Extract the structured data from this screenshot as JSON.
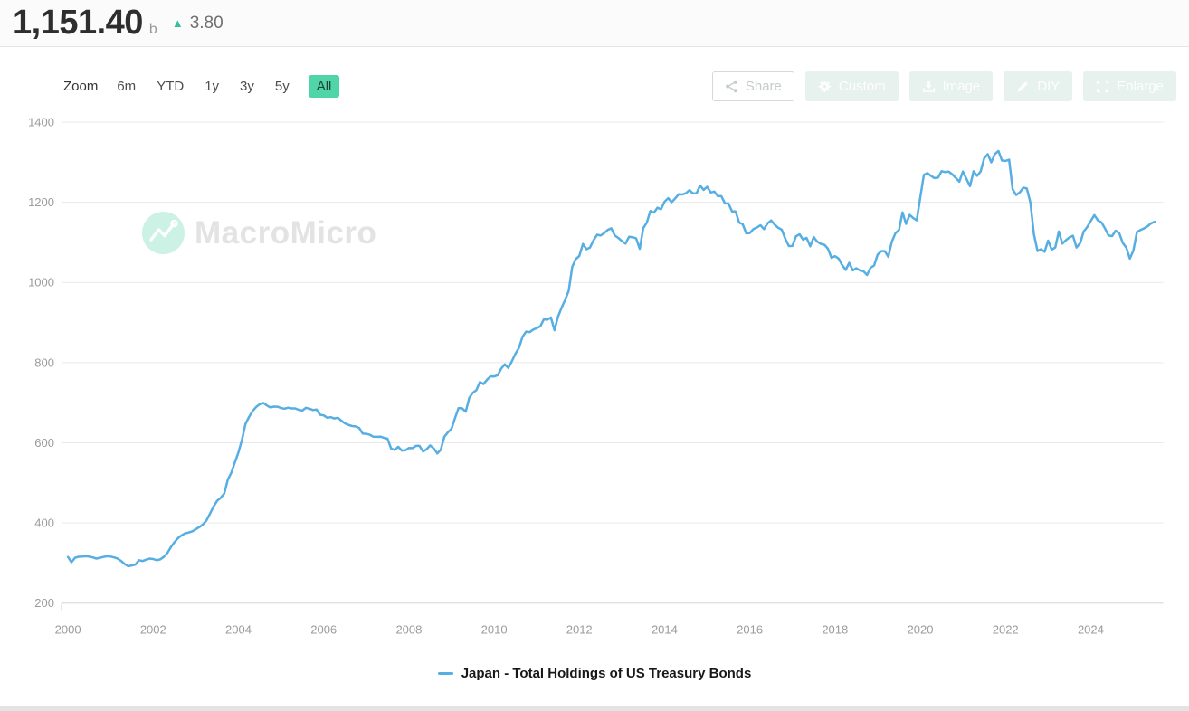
{
  "header": {
    "value": "1,151.40",
    "unit": "b",
    "change": "3.80",
    "change_direction": "up",
    "accent_color": "#36bf9c"
  },
  "toolbar": {
    "zoom_label": "Zoom",
    "ranges": [
      "6m",
      "YTD",
      "1y",
      "3y",
      "5y",
      "All"
    ],
    "selected_range": "All",
    "selected_bg": "#4fd5a8"
  },
  "actions": {
    "share": "Share",
    "custom": "Custom",
    "image": "Image",
    "diy": "DIY",
    "enlarge": "Enlarge"
  },
  "watermark": {
    "text": "MacroMicro"
  },
  "legend": {
    "series_label": "Japan - Total Holdings of US Treasury Bonds",
    "color": "#56AEE2"
  },
  "chart_data": {
    "type": "line",
    "title": "",
    "xlabel": "",
    "ylabel": "",
    "unit": "billion USD",
    "grid": "horizontal",
    "legend_position": "bottom",
    "ylim": [
      200,
      1400
    ],
    "xlim": [
      1999.85,
      2025.7
    ],
    "y_ticks": [
      200,
      400,
      600,
      800,
      1000,
      1200,
      1400
    ],
    "x_tick_years": [
      2000,
      2002,
      2004,
      2006,
      2008,
      2010,
      2012,
      2014,
      2016,
      2018,
      2020,
      2022,
      2024
    ],
    "last_value": 1151.4,
    "last_change": 3.8,
    "series": [
      {
        "name": "Japan - Total Holdings of US Treasury Bonds",
        "color": "#56AEE2",
        "start_year": 2000,
        "frequency": "monthly",
        "values": [
          315,
          302,
          313,
          315.5,
          316,
          317,
          316,
          314,
          311,
          313,
          315,
          317,
          316,
          314,
          311,
          305,
          297,
          292,
          294,
          296,
          307,
          305,
          308,
          311,
          310,
          307,
          309,
          315,
          325,
          340,
          352,
          362,
          369,
          374,
          376,
          379,
          384.5,
          389.6,
          396.1,
          406.1,
          423.3,
          440.5,
          455.1,
          462.4,
          473,
          507.4,
          525.2,
          550.8,
          576.1,
          607.3,
          647.4,
          664.2,
          679.4,
          689.3,
          696.1,
          699.4,
          692.9,
          688.2,
          690.3,
          689.9,
          686.7,
          685,
          687.4,
          685.8,
          685.7,
          682.1,
          680.2,
          687,
          684.9,
          681.7,
          682.9,
          670,
          668.3,
          662.4,
          663.7,
          660.6,
          662.5,
          654.8,
          648.4,
          644.7,
          641.6,
          640.8,
          636.9,
          622.9,
          622.3,
          620,
          615.1,
          614.8,
          615.2,
          612.3,
          610.1,
          585.6,
          582.2,
          590.1,
          580.5,
          581.2,
          586.9,
          586.6,
          592.3,
          592.2,
          578.1,
          583.8,
          593.4,
          586,
          573.3,
          582.9,
          615.2,
          626,
          634.8,
          661.9,
          686.7,
          685.9,
          677.5,
          711.8,
          724.5,
          731,
          751.5,
          746.5,
          757.3,
          765.7,
          765.4,
          768.5,
          784.9,
          795.5,
          786.7,
          803.6,
          821.9,
          836.6,
          864.5,
          877.4,
          875.9,
          882.3,
          885.9,
          890.3,
          907.9,
          906.9,
          912.4,
          881,
          914.8,
          936.6,
          956.2,
          979,
          1038.8,
          1058.4,
          1066,
          1096,
          1083,
          1087,
          1105,
          1119,
          1117,
          1123,
          1131,
          1135,
          1117,
          1111,
          1103,
          1097,
          1114,
          1113,
          1110,
          1083.7,
          1135.4,
          1149.2,
          1178.1,
          1174.4,
          1186.4,
          1182.5,
          1201.4,
          1210.1,
          1200.2,
          1209.7,
          1220.1,
          1219.5,
          1222.7,
          1230.1,
          1222.2,
          1222.4,
          1241.5,
          1230.9,
          1238.5,
          1224.4,
          1226.6,
          1215.4,
          1215.2,
          1197.1,
          1196.8,
          1177,
          1177.3,
          1149.2,
          1145.1,
          1122.5,
          1123.2,
          1133.1,
          1137.1,
          1142.7,
          1133,
          1147.7,
          1154.7,
          1144.2,
          1136.4,
          1131.5,
          1108.6,
          1090.8,
          1091,
          1115.2,
          1120.1,
          1106.9,
          1111.1,
          1090.1,
          1113.1,
          1101.7,
          1096.2,
          1093.9,
          1084.1,
          1061.5,
          1065.8,
          1059.5,
          1043.5,
          1031.2,
          1048.8,
          1030.1,
          1035.5,
          1029.9,
          1028,
          1018.5,
          1036.6,
          1042.3,
          1069.3,
          1078.2,
          1078.1,
          1064,
          1101.8,
          1122.9,
          1130.9,
          1174.7,
          1146.2,
          1168.4,
          1160.8,
          1154.9,
          1211.7,
          1268.3,
          1272.6,
          1266,
          1260.4,
          1261.5,
          1277.5,
          1275.2,
          1276.4,
          1269.6,
          1260.7,
          1251.3,
          1276.7,
          1258.1,
          1240.3,
          1277.3,
          1266,
          1277.1,
          1310,
          1319.9,
          1299.5,
          1320.4,
          1328.1,
          1304,
          1303.1,
          1306.3,
          1232.4,
          1218.1,
          1224.3,
          1236.3,
          1234.4,
          1199.5,
          1120.2,
          1078.3,
          1082.9,
          1076.3,
          1104.4,
          1081.8,
          1087.1,
          1127.1,
          1096.8,
          1105.5,
          1112.5,
          1116.2,
          1087.1,
          1098.2,
          1127.1,
          1138.3,
          1153,
          1167.9,
          1155,
          1150,
          1135,
          1117,
          1115.7,
          1129,
          1123.3,
          1098.7,
          1087,
          1059.5,
          1079.3,
          1125.9,
          1130.8,
          1134.9,
          1140,
          1147.6,
          1151.4
        ]
      }
    ]
  }
}
